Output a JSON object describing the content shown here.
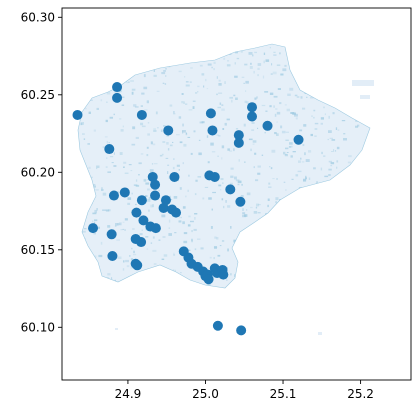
{
  "chart_data": {
    "type": "scatter",
    "title": "",
    "xlabel": "",
    "ylabel": "",
    "xlim": [
      24.815,
      25.265
    ],
    "ylim": [
      60.066,
      60.306
    ],
    "x_ticks": [
      24.9,
      25.0,
      25.1,
      25.2
    ],
    "x_tick_labels": [
      "24.9",
      "25.0",
      "25.1",
      "25.2"
    ],
    "y_ticks": [
      60.1,
      60.15,
      60.2,
      60.25,
      60.3
    ],
    "y_tick_labels": [
      "60.10",
      "60.15",
      "60.20",
      "60.25",
      "60.30"
    ],
    "grid": false,
    "legend": false,
    "background_layer": "city building footprints (light blue)",
    "colors": {
      "points": "#1f77b4",
      "background_fill": "#c6dbef"
    },
    "series": [
      {
        "marker": "circle",
        "points": [
          {
            "x": 24.835,
            "y": 60.237
          },
          {
            "x": 24.876,
            "y": 60.215
          },
          {
            "x": 24.886,
            "y": 60.255
          },
          {
            "x": 24.886,
            "y": 60.248
          },
          {
            "x": 24.918,
            "y": 60.237
          },
          {
            "x": 24.952,
            "y": 60.227
          },
          {
            "x": 25.007,
            "y": 60.238
          },
          {
            "x": 25.009,
            "y": 60.227
          },
          {
            "x": 25.043,
            "y": 60.224
          },
          {
            "x": 25.043,
            "y": 60.219
          },
          {
            "x": 25.06,
            "y": 60.242
          },
          {
            "x": 25.06,
            "y": 60.236
          },
          {
            "x": 25.08,
            "y": 60.23
          },
          {
            "x": 25.12,
            "y": 60.221
          },
          {
            "x": 24.932,
            "y": 60.197
          },
          {
            "x": 24.935,
            "y": 60.192
          },
          {
            "x": 24.96,
            "y": 60.197
          },
          {
            "x": 25.005,
            "y": 60.198
          },
          {
            "x": 25.012,
            "y": 60.197
          },
          {
            "x": 25.032,
            "y": 60.189
          },
          {
            "x": 24.896,
            "y": 60.187
          },
          {
            "x": 24.882,
            "y": 60.185
          },
          {
            "x": 24.918,
            "y": 60.182
          },
          {
            "x": 24.935,
            "y": 60.185
          },
          {
            "x": 24.946,
            "y": 60.177
          },
          {
            "x": 24.949,
            "y": 60.182
          },
          {
            "x": 24.957,
            "y": 60.176
          },
          {
            "x": 24.962,
            "y": 60.174
          },
          {
            "x": 24.911,
            "y": 60.174
          },
          {
            "x": 25.045,
            "y": 60.181
          },
          {
            "x": 24.92,
            "y": 60.169
          },
          {
            "x": 24.929,
            "y": 60.165
          },
          {
            "x": 24.936,
            "y": 60.164
          },
          {
            "x": 24.855,
            "y": 60.164
          },
          {
            "x": 24.91,
            "y": 60.157
          },
          {
            "x": 24.917,
            "y": 60.155
          },
          {
            "x": 24.879,
            "y": 60.16
          },
          {
            "x": 24.88,
            "y": 60.146
          },
          {
            "x": 24.972,
            "y": 60.149
          },
          {
            "x": 24.978,
            "y": 60.145
          },
          {
            "x": 24.982,
            "y": 60.141
          },
          {
            "x": 24.99,
            "y": 60.139
          },
          {
            "x": 24.997,
            "y": 60.136
          },
          {
            "x": 25.0,
            "y": 60.133
          },
          {
            "x": 25.003,
            "y": 60.134
          },
          {
            "x": 25.004,
            "y": 60.131
          },
          {
            "x": 25.012,
            "y": 60.138
          },
          {
            "x": 25.015,
            "y": 60.135
          },
          {
            "x": 25.022,
            "y": 60.137
          },
          {
            "x": 25.023,
            "y": 60.134
          },
          {
            "x": 24.91,
            "y": 60.141
          },
          {
            "x": 24.912,
            "y": 60.14
          },
          {
            "x": 25.016,
            "y": 60.101
          },
          {
            "x": 25.046,
            "y": 60.098
          }
        ]
      }
    ]
  }
}
